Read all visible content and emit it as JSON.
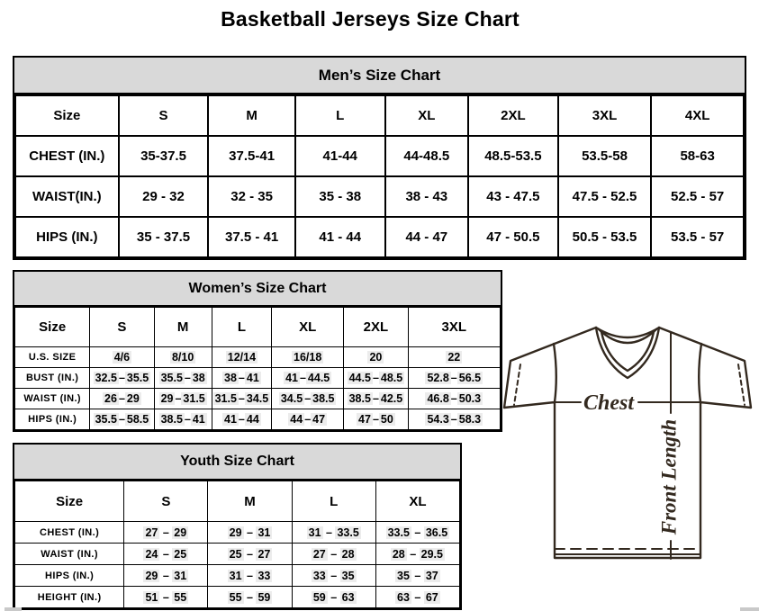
{
  "page_title": "Basketball Jerseys Size Chart",
  "tables": {
    "men": {
      "title": "Men’s Size Chart",
      "header": [
        "Size",
        "S",
        "M",
        "L",
        "XL",
        "2XL",
        "3XL",
        "4XL"
      ],
      "rows": [
        [
          "CHEST (IN.)",
          "35-37.5",
          "37.5-41",
          "41-44",
          "44-48.5",
          "48.5-53.5",
          "53.5-58",
          "58-63"
        ],
        [
          "WAIST(IN.)",
          "29 - 32",
          "32 - 35",
          "35 - 38",
          "38 - 43",
          "43 - 47.5",
          "47.5 - 52.5",
          "52.5 - 57"
        ],
        [
          "HIPS (IN.)",
          "35 - 37.5",
          "37.5 - 41",
          "41 - 44",
          "44 - 47",
          "47 - 50.5",
          "50.5 - 53.5",
          "53.5 - 57"
        ]
      ]
    },
    "women": {
      "title": "Women’s Size Chart",
      "header": [
        "Size",
        "S",
        "M",
        "L",
        "XL",
        "2XL",
        "3XL"
      ],
      "rows": [
        [
          "U.S. SIZE",
          "4/6",
          "8/10",
          "12/14",
          "16/18",
          "20",
          "22"
        ],
        [
          "BUST (IN.)",
          "32.5–35.5",
          "35.5–38",
          "38–41",
          "41–44.5",
          "44.5–48.5",
          "52.8–56.5"
        ],
        [
          "WAIST (IN.)",
          "26–29",
          "29–31.5",
          "31.5–34.5",
          "34.5–38.5",
          "38.5–42.5",
          "46.8–50.3"
        ],
        [
          "HIPS (IN.)",
          "35.5–58.5",
          "38.5–41",
          "41–44",
          "44–47",
          "47–50",
          "54.3–58.3"
        ]
      ]
    },
    "youth": {
      "title": "Youth Size Chart",
      "header": [
        "Size",
        "S",
        "M",
        "L",
        "XL"
      ],
      "rows": [
        [
          "CHEST (IN.)",
          "27 – 29",
          "29 – 31",
          "31 – 33.5",
          "33.5 – 36.5"
        ],
        [
          "WAIST (IN.)",
          "24 – 25",
          "25 – 27",
          "27 – 28",
          "28 – 29.5"
        ],
        [
          "HIPS (IN.)",
          "29 – 31",
          "31 – 33",
          "33 – 35",
          "35 – 37"
        ],
        [
          "HEIGHT (IN.)",
          "51 – 55",
          "55 – 59",
          "59 – 63",
          "63 – 67"
        ]
      ]
    }
  },
  "diagram": {
    "chest_label": "Chest",
    "front_length_label": "Front Length"
  },
  "colors": {
    "banner_bg": "#d9d9d9",
    "table_border": "#000000",
    "value_highlight": "#ececec",
    "diagram_line": "#33291f",
    "scrollbar_fragment": "#c9c9c9"
  }
}
